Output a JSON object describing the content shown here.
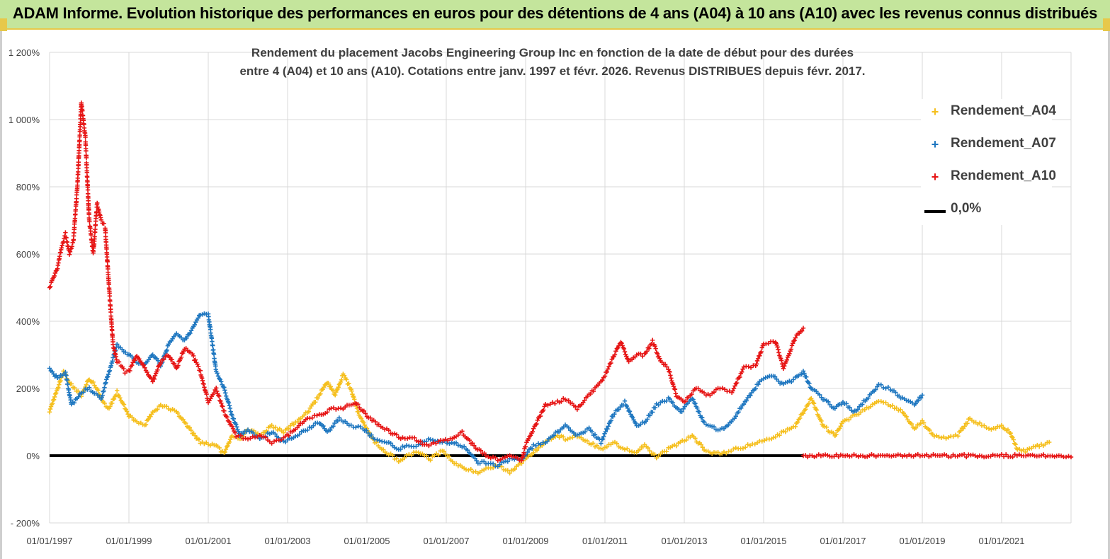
{
  "banner": {
    "title": "ADAM Informe. Evolution historique des performances en euros pour des détentions de 4 ans (A04) à 10 ans (A10) avec les revenus connus distribués"
  },
  "colors": {
    "a04": "#f5bf1d",
    "a07": "#1f77c0",
    "a10": "#e61515",
    "zero": "#000000",
    "grid": "#d9d9d9",
    "banner_bg": "#c4e59c"
  },
  "chart_data": {
    "type": "scatter",
    "title_lines": [
      "Rendement du placement Jacobs Engineering Group Inc en fonction de la date de début pour des durées",
      "entre 4 (A04) et 10 ans (A10). Cotations entre janv. 1997 et févr. 2026. Revenus DISTRIBUES depuis févr. 2017."
    ],
    "y_ticks": [
      "1 200%",
      "1 000%",
      "800%",
      "600%",
      "400%",
      "200%",
      "0%",
      "- 200%"
    ],
    "y_tick_values": [
      1200,
      1000,
      800,
      600,
      400,
      200,
      0,
      -200
    ],
    "x_ticks": [
      "01/01/1997",
      "01/01/1999",
      "01/01/2001",
      "01/01/2003",
      "01/01/2005",
      "01/01/2007",
      "01/01/2009",
      "01/01/2011",
      "01/01/2013",
      "01/01/2015",
      "01/01/2017",
      "01/01/2019",
      "01/01/2021"
    ],
    "x_tick_years": [
      1997,
      1999,
      2001,
      2003,
      2005,
      2007,
      2009,
      2011,
      2013,
      2015,
      2017,
      2019,
      2021
    ],
    "xlim": [
      1997.0,
      2022.75
    ],
    "ylim": [
      -200,
      1200
    ],
    "legend_position": "right",
    "series": [
      {
        "name": "Rendement_A04",
        "color": "#f5bf1d",
        "x": [
          1997.0,
          1997.2,
          1997.35,
          1997.55,
          1997.8,
          1998.0,
          1998.2,
          1998.35,
          1998.5,
          1998.7,
          1999.0,
          1999.2,
          1999.4,
          1999.6,
          1999.8,
          2000.0,
          2000.2,
          2000.4,
          2000.6,
          2000.8,
          2001.0,
          2001.2,
          2001.4,
          2001.6,
          2001.8,
          2002.0,
          2002.3,
          2002.6,
          2002.9,
          2003.2,
          2003.5,
          2003.8,
          2004.0,
          2004.2,
          2004.4,
          2004.6,
          2004.8,
          2005.0,
          2005.2,
          2005.5,
          2005.8,
          2006.0,
          2006.3,
          2006.6,
          2006.9,
          2007.2,
          2007.5,
          2007.8,
          2008.0,
          2008.3,
          2008.6,
          2008.9,
          2009.2,
          2009.5,
          2009.8,
          2010.0,
          2010.3,
          2010.6,
          2010.9,
          2011.2,
          2011.5,
          2011.8,
          2012.0,
          2012.3,
          2012.6,
          2012.9,
          2013.2,
          2013.5,
          2013.8,
          2014.0,
          2014.3,
          2014.6,
          2014.9,
          2015.2,
          2015.5,
          2015.8,
          2016.0,
          2016.2,
          2016.5,
          2016.8,
          2017.0,
          2017.3,
          2017.6,
          2017.9,
          2018.2,
          2018.5,
          2018.8,
          2019.0,
          2019.3,
          2019.6,
          2019.9,
          2020.0,
          2020.2,
          2020.5,
          2020.8,
          2021.0,
          2021.2,
          2021.4,
          2021.6,
          2021.8,
          2022.0,
          2022.2
        ],
        "y": [
          130,
          200,
          250,
          210,
          180,
          230,
          200,
          160,
          140,
          190,
          120,
          100,
          90,
          130,
          150,
          140,
          130,
          100,
          70,
          40,
          35,
          30,
          5,
          60,
          50,
          80,
          60,
          90,
          70,
          100,
          130,
          180,
          220,
          180,
          240,
          200,
          120,
          80,
          40,
          10,
          -15,
          0,
          10,
          -10,
          15,
          -20,
          -40,
          -50,
          -40,
          -30,
          -50,
          -20,
          10,
          40,
          60,
          50,
          60,
          40,
          20,
          40,
          20,
          10,
          30,
          -5,
          20,
          40,
          60,
          20,
          5,
          10,
          20,
          30,
          40,
          50,
          70,
          90,
          130,
          170,
          90,
          60,
          100,
          120,
          140,
          160,
          150,
          130,
          80,
          100,
          60,
          50,
          60,
          80,
          110,
          90,
          80,
          90,
          70,
          20,
          15,
          30,
          30,
          40
        ]
      },
      {
        "name": "Rendement_A07",
        "color": "#1f77c0",
        "x": [
          1997.0,
          1997.2,
          1997.4,
          1997.55,
          1997.8,
          1998.0,
          1998.3,
          1998.5,
          1998.7,
          1999.0,
          1999.2,
          1999.4,
          1999.6,
          1999.8,
          2000.0,
          2000.2,
          2000.4,
          2000.6,
          2000.8,
          2001.0,
          2001.2,
          2001.4,
          2001.6,
          2001.8,
          2002.0,
          2002.3,
          2002.6,
          2002.9,
          2003.2,
          2003.5,
          2003.8,
          2004.0,
          2004.3,
          2004.6,
          2004.9,
          2005.2,
          2005.5,
          2005.8,
          2006.0,
          2006.3,
          2006.6,
          2006.9,
          2007.2,
          2007.5,
          2007.8,
          2008.0,
          2008.3,
          2008.6,
          2008.9,
          2009.2,
          2009.5,
          2009.8,
          2010.0,
          2010.3,
          2010.6,
          2010.9,
          2011.2,
          2011.5,
          2011.8,
          2012.0,
          2012.3,
          2012.6,
          2012.9,
          2013.2,
          2013.5,
          2013.8,
          2014.0,
          2014.3,
          2014.6,
          2014.9,
          2015.2,
          2015.5,
          2015.8,
          2016.0,
          2016.2,
          2016.5,
          2016.8,
          2017.0,
          2017.3,
          2017.6,
          2017.9,
          2018.2,
          2018.5,
          2018.8,
          2019.0
        ],
        "y": [
          260,
          230,
          250,
          150,
          190,
          200,
          170,
          250,
          330,
          300,
          280,
          270,
          300,
          270,
          330,
          360,
          340,
          380,
          420,
          420,
          250,
          200,
          120,
          60,
          80,
          50,
          70,
          40,
          60,
          80,
          100,
          70,
          110,
          90,
          80,
          50,
          40,
          20,
          30,
          30,
          50,
          40,
          40,
          20,
          -20,
          -20,
          -30,
          -10,
          -10,
          30,
          40,
          70,
          90,
          60,
          80,
          40,
          120,
          160,
          90,
          100,
          150,
          170,
          130,
          170,
          100,
          80,
          80,
          120,
          170,
          220,
          240,
          210,
          230,
          250,
          200,
          170,
          140,
          160,
          130,
          170,
          210,
          200,
          170,
          150,
          180
        ]
      },
      {
        "name": "Rendement_A10",
        "color": "#e61515",
        "x": [
          1997.0,
          1997.1,
          1997.2,
          1997.3,
          1997.4,
          1997.5,
          1997.6,
          1997.7,
          1997.8,
          1997.9,
          1998.0,
          1998.1,
          1998.2,
          1998.3,
          1998.4,
          1998.5,
          1998.6,
          1998.7,
          1998.8,
          1998.9,
          1999.0,
          1999.2,
          1999.4,
          1999.6,
          1999.8,
          2000.0,
          2000.2,
          2000.4,
          2000.6,
          2000.8,
          2001.0,
          2001.2,
          2001.4,
          2001.7,
          2002.0,
          2002.3,
          2002.6,
          2002.9,
          2003.2,
          2003.5,
          2003.8,
          2004.1,
          2004.4,
          2004.7,
          2005.0,
          2005.3,
          2005.6,
          2005.9,
          2006.2,
          2006.5,
          2006.8,
          2007.1,
          2007.4,
          2007.7,
          2008.0,
          2008.3,
          2008.6,
          2008.9,
          2009.0,
          2009.2,
          2009.5,
          2009.8,
          2010.0,
          2010.3,
          2010.6,
          2010.9,
          2011.0,
          2011.2,
          2011.4,
          2011.6,
          2011.8,
          2012.0,
          2012.2,
          2012.4,
          2012.6,
          2012.8,
          2013.0,
          2013.3,
          2013.6,
          2013.9,
          2014.2,
          2014.5,
          2014.8,
          2015.0,
          2015.3,
          2015.5,
          2015.8,
          2016.0
        ],
        "y": [
          500,
          530,
          560,
          620,
          660,
          600,
          640,
          800,
          1050,
          950,
          700,
          600,
          750,
          700,
          680,
          500,
          330,
          280,
          270,
          250,
          250,
          300,
          260,
          220,
          280,
          300,
          260,
          320,
          300,
          250,
          160,
          200,
          130,
          60,
          50,
          60,
          40,
          50,
          80,
          110,
          120,
          140,
          140,
          160,
          120,
          90,
          70,
          50,
          50,
          30,
          40,
          50,
          70,
          30,
          0,
          -10,
          0,
          -15,
          30,
          80,
          150,
          160,
          170,
          140,
          180,
          220,
          240,
          290,
          340,
          280,
          300,
          300,
          340,
          280,
          260,
          180,
          160,
          200,
          180,
          200,
          190,
          260,
          270,
          330,
          340,
          260,
          350,
          380
        ]
      },
      {
        "name": "Rendement_A10",
        "color": "#e61515",
        "x": [
          2016.0,
          2016.5,
          2017.0,
          2017.5,
          2018.0,
          2018.5,
          2019.0,
          2019.5,
          2020.0,
          2020.5,
          2021.0,
          2021.5,
          2022.0,
          2022.5,
          2022.75
        ],
        "y": [
          0,
          0,
          0,
          0,
          0,
          0,
          0,
          0,
          0,
          0,
          0,
          0,
          0,
          0,
          0
        ]
      }
    ],
    "zero_line": {
      "name": "0,0%",
      "y": 0,
      "x_range": [
        1997.0,
        2016.0
      ]
    },
    "legend_entries": [
      "Rendement_A04",
      "Rendement_A07",
      "Rendement_A10",
      "0,0%"
    ]
  }
}
